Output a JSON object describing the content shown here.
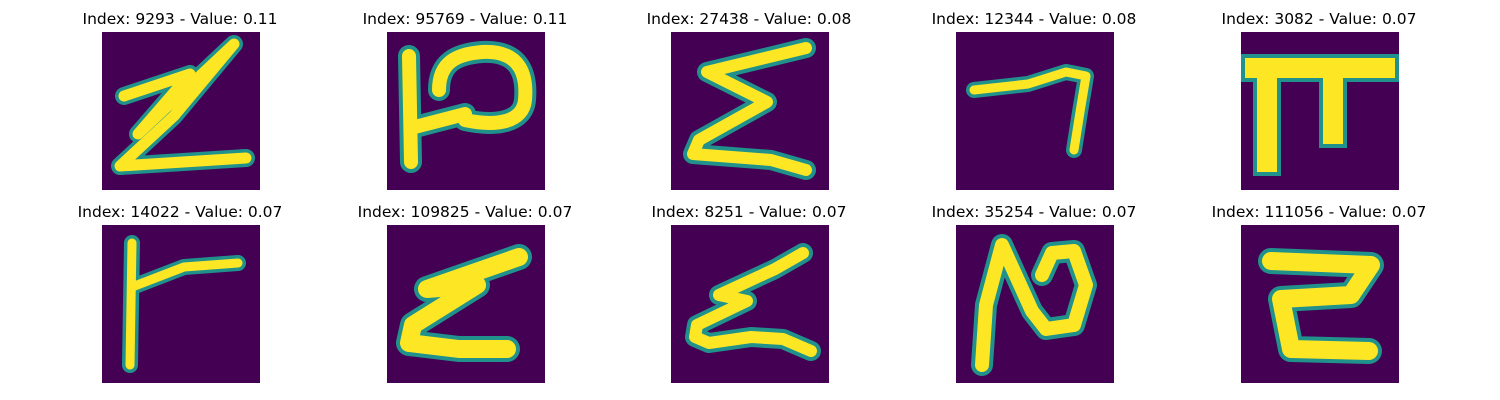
{
  "panels": [
    {
      "title": "Index: 9293 - Value: 0.11",
      "glyph": "zigzag-z-glyph"
    },
    {
      "title": "Index: 95769 - Value: 0.11",
      "glyph": "p-like-glyph"
    },
    {
      "title": "Index: 27438 - Value: 0.08",
      "glyph": "sigma-glyph"
    },
    {
      "title": "Index: 12344 - Value: 0.08",
      "glyph": "seven-like-glyph"
    },
    {
      "title": "Index: 3082 - Value: 0.07",
      "glyph": "pi-glyph"
    },
    {
      "title": "Index: 14022 - Value: 0.07",
      "glyph": "f-like-glyph"
    },
    {
      "title": "Index: 109825 - Value: 0.07",
      "glyph": "z-slanted-glyph"
    },
    {
      "title": "Index: 8251 - Value: 0.07",
      "glyph": "z-loop-glyph"
    },
    {
      "title": "Index: 35254 - Value: 0.07",
      "glyph": "n-loop-glyph"
    },
    {
      "title": "Index: 111056 - Value: 0.07",
      "glyph": "z-boxy-glyph"
    }
  ],
  "colors": {
    "background": "#440154",
    "stroke": "#fde725",
    "edge": "#21918c"
  }
}
